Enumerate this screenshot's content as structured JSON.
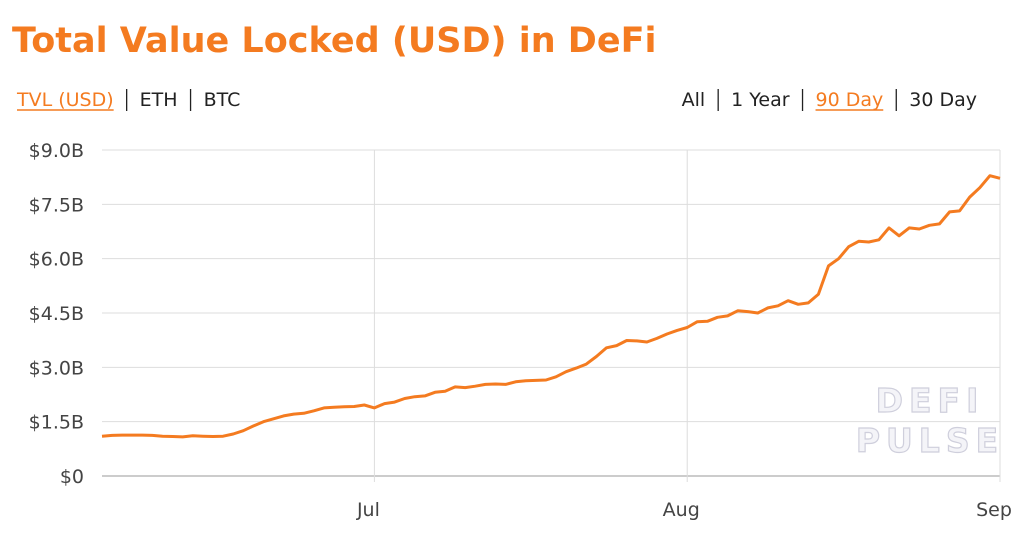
{
  "chart_data": {
    "type": "line",
    "title": "Total Value Locked (USD) in DeFi",
    "tabs": [
      {
        "label": "TVL (USD)",
        "active": true
      },
      {
        "label": "ETH",
        "active": false
      },
      {
        "label": "BTC",
        "active": false
      }
    ],
    "ranges": [
      {
        "label": "All",
        "active": false
      },
      {
        "label": "1 Year",
        "active": false
      },
      {
        "label": "90 Day",
        "active": true
      },
      {
        "label": "30 Day",
        "active": false
      }
    ],
    "watermark": [
      "DEFI",
      "PULSE"
    ],
    "categories": [
      null,
      null,
      null,
      null,
      null,
      null,
      null,
      null,
      null,
      null,
      null,
      null,
      null,
      null,
      null,
      null,
      null,
      null,
      null,
      null,
      null,
      null,
      null,
      null,
      null,
      null,
      null,
      "Jul",
      null,
      null,
      null,
      null,
      null,
      null,
      null,
      null,
      null,
      null,
      null,
      null,
      null,
      null,
      null,
      null,
      null,
      null,
      null,
      null,
      null,
      null,
      null,
      null,
      null,
      null,
      null,
      null,
      null,
      null,
      "Aug",
      null,
      null,
      null,
      null,
      null,
      null,
      null,
      null,
      null,
      null,
      null,
      null,
      null,
      null,
      null,
      null,
      null,
      null,
      null,
      null,
      null,
      null,
      null,
      null,
      null,
      null,
      null,
      null,
      null,
      null,
      "Sep"
    ],
    "series": [
      {
        "color": "#f47b20",
        "values": [
          1.1,
          1.12,
          1.13,
          1.13,
          1.13,
          1.12,
          1.1,
          1.09,
          1.08,
          1.11,
          1.1,
          1.09,
          1.1,
          1.16,
          1.25,
          1.38,
          1.5,
          1.58,
          1.66,
          1.71,
          1.73,
          1.8,
          1.88,
          1.9,
          1.91,
          1.92,
          1.96,
          1.88,
          2.0,
          2.04,
          2.14,
          2.19,
          2.21,
          2.31,
          2.34,
          2.46,
          2.44,
          2.48,
          2.53,
          2.54,
          2.53,
          2.6,
          2.63,
          2.64,
          2.65,
          2.74,
          2.88,
          2.98,
          3.09,
          3.3,
          3.54,
          3.6,
          3.74,
          3.73,
          3.7,
          3.8,
          3.92,
          4.02,
          4.1,
          4.26,
          4.27,
          4.38,
          4.42,
          4.56,
          4.54,
          4.5,
          4.64,
          4.7,
          4.84,
          4.74,
          4.78,
          5.02,
          5.8,
          6.0,
          6.33,
          6.48,
          6.46,
          6.52,
          6.85,
          6.63,
          6.85,
          6.82,
          6.92,
          6.96,
          7.29,
          7.32,
          7.7,
          7.96,
          8.29,
          8.22
        ]
      }
    ],
    "ylim": [
      0,
      9
    ],
    "yticks": [
      {
        "value": 0,
        "label": "$0"
      },
      {
        "value": 1.5,
        "label": "$1.5B"
      },
      {
        "value": 3,
        "label": "$3.0B"
      },
      {
        "value": 4.5,
        "label": "$4.5B"
      },
      {
        "value": 6,
        "label": "$6.0B"
      },
      {
        "value": 7.5,
        "label": "$7.5B"
      },
      {
        "value": 9,
        "label": "$9.0B"
      }
    ],
    "grid": true
  }
}
